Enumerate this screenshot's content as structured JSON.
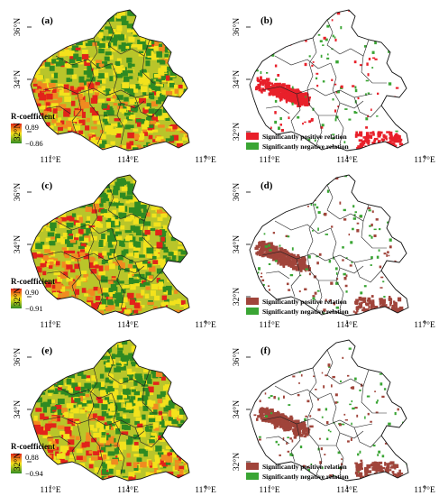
{
  "axis": {
    "x_ticks": [
      "111°E",
      "114°E",
      "117°E"
    ],
    "y_ticks": [
      "36°N",
      "34°N",
      "32°N"
    ]
  },
  "legend_title": "R-coefficient",
  "panels": [
    {
      "label": "(a)",
      "type": "coef",
      "max": "0.89",
      "min": "−0.86",
      "shift": 0
    },
    {
      "label": "(b)",
      "type": "sig",
      "pos_label": "Significantly positive relation",
      "neg_label": "Significantly negative relation",
      "pos_color": "#e8202a",
      "neg_color": "#3aa534"
    },
    {
      "label": "(c)",
      "type": "coef",
      "max": "0.90",
      "min": "−0.91",
      "shift": 1
    },
    {
      "label": "(d)",
      "type": "sig",
      "pos_label": "Significantly positive relation",
      "neg_label": "Significantly negative relation",
      "pos_color": "#a0443a",
      "neg_color": "#3aa534"
    },
    {
      "label": "(e)",
      "type": "coef",
      "max": "0.88",
      "min": "−0.94",
      "shift": 2
    },
    {
      "label": "(f)",
      "type": "sig",
      "pos_label": "Significantly positive relation",
      "neg_label": "Significantly negative relation",
      "pos_color": "#a0443a",
      "neg_color": "#3aa534"
    }
  ],
  "colors": {
    "coef_high": "#e2231a",
    "coef_mid": "#f3e21c",
    "coef_low": "#2f8a22"
  }
}
